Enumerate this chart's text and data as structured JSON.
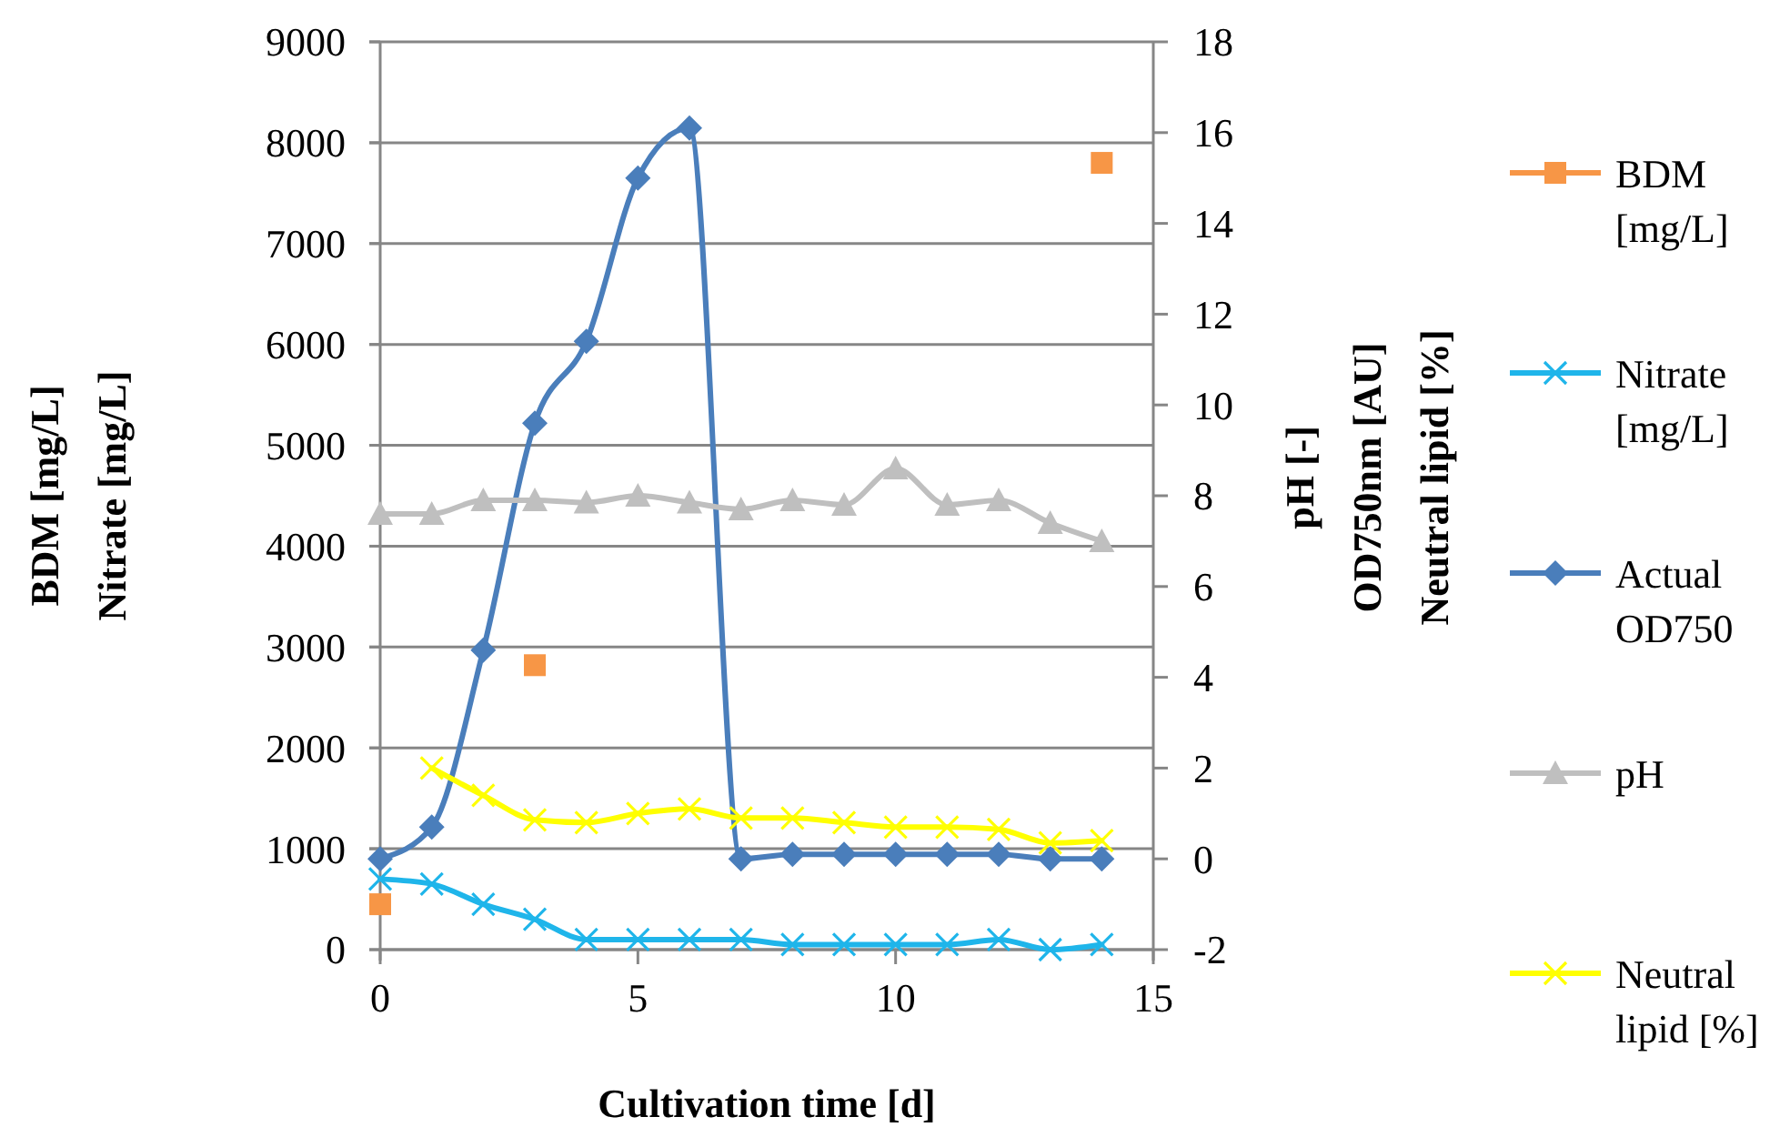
{
  "chart_data": {
    "type": "line",
    "xlabel": "Cultivation time [d]",
    "ylabel": "BDM [mg/L]\nNitrate [mg/L]",
    "y2label": "pH [-]\nOD750nm [AU]\nNeutral lipid [%]",
    "xlim": [
      0,
      15
    ],
    "xticks": [
      0,
      5,
      10,
      15
    ],
    "ylim": [
      0,
      9000
    ],
    "yticks": [
      0,
      1000,
      2000,
      3000,
      4000,
      5000,
      6000,
      7000,
      8000,
      9000
    ],
    "y2lim": [
      -2,
      18
    ],
    "y2ticks": [
      -2,
      0,
      2,
      4,
      6,
      8,
      10,
      12,
      14,
      16,
      18
    ],
    "grid": "y",
    "legend": "right",
    "series": [
      {
        "name": "BDM [mg/L]",
        "type": "scatter",
        "marker": "square",
        "color": "#f79646",
        "x": [
          0,
          3,
          14
        ],
        "values": [
          450,
          2820,
          7800
        ]
      },
      {
        "name": "Nitrate [mg/L]",
        "marker": "cross",
        "color": "#1fb5ea",
        "x": [
          0,
          1,
          2,
          3,
          4,
          5,
          6,
          7,
          8,
          9,
          10,
          11,
          12,
          13,
          14
        ],
        "values": [
          700,
          650,
          450,
          300,
          100,
          100,
          100,
          100,
          50,
          50,
          50,
          50,
          100,
          0,
          50
        ]
      },
      {
        "name": "Actual OD750",
        "marker": "diamond",
        "axis": "y2",
        "color": "#4a7ebb",
        "x": [
          0,
          1,
          2,
          3,
          4,
          5,
          6,
          7,
          8,
          9,
          10,
          11,
          12,
          13,
          14
        ],
        "values": [
          0,
          0.7,
          4.6,
          9.6,
          11.4,
          15.0,
          16.1,
          0,
          0.1,
          0.1,
          0.1,
          0.1,
          0.1,
          0,
          0
        ]
      },
      {
        "name": "pH",
        "marker": "triangle",
        "axis": "y2",
        "color": "#bfbfbf",
        "x": [
          0,
          1,
          2,
          3,
          4,
          5,
          6,
          7,
          8,
          9,
          10,
          11,
          12,
          13,
          14
        ],
        "values": [
          7.6,
          7.6,
          7.9,
          7.9,
          7.85,
          8.0,
          7.85,
          7.7,
          7.9,
          7.8,
          8.6,
          7.8,
          7.9,
          7.4,
          7.0
        ]
      },
      {
        "name": "Neutral lipid [%]",
        "marker": "cross",
        "axis": "y2",
        "color": "#ffff00",
        "x": [
          1,
          2,
          3,
          4,
          5,
          6,
          7,
          8,
          9,
          10,
          11,
          12,
          13,
          14
        ],
        "values": [
          2.0,
          1.4,
          0.86,
          0.8,
          1.0,
          1.1,
          0.9,
          0.9,
          0.8,
          0.7,
          0.7,
          0.65,
          0.35,
          0.4
        ]
      }
    ]
  }
}
